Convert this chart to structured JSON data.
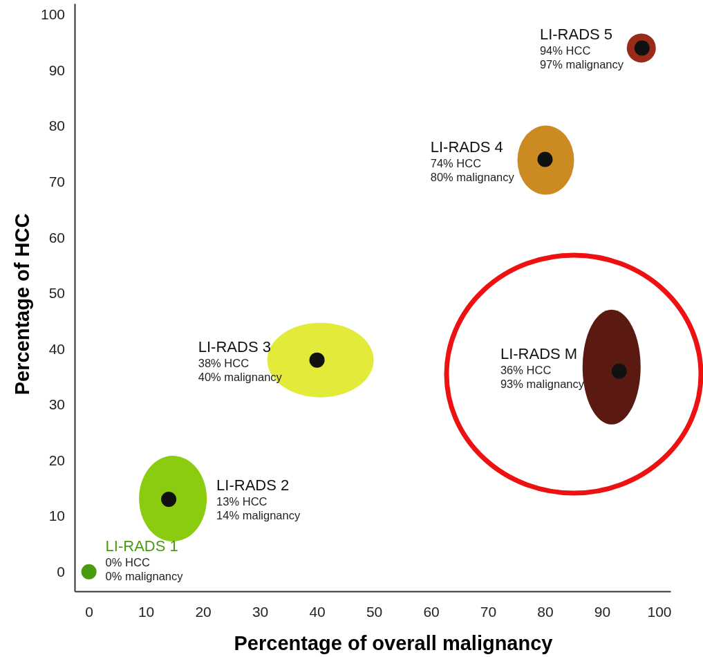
{
  "chart_data": {
    "type": "scatter",
    "xlabel": "Percentage of overall malignancy",
    "ylabel": "Percentage of HCC",
    "xlim": [
      -2.5,
      102
    ],
    "ylim": [
      -3.5,
      102
    ],
    "xticks": [
      0,
      10,
      20,
      30,
      40,
      50,
      60,
      70,
      80,
      90,
      100
    ],
    "yticks": [
      0,
      10,
      20,
      30,
      40,
      50,
      60,
      70,
      80,
      90,
      100
    ],
    "grid": false,
    "legend": false,
    "marker": "circle",
    "series": [
      {
        "name": "LI-RADS 1",
        "color": "#4a9a12",
        "x": [
          0
        ],
        "values": [
          0
        ]
      },
      {
        "name": "LI-RADS 2",
        "color": "#111111",
        "x": [
          14
        ],
        "values": [
          13
        ]
      },
      {
        "name": "LI-RADS 3",
        "color": "#111111",
        "x": [
          40
        ],
        "values": [
          38
        ]
      },
      {
        "name": "LI-RADS 4",
        "color": "#111111",
        "x": [
          80
        ],
        "values": [
          74
        ]
      },
      {
        "name": "LI-RADS 5",
        "color": "#111111",
        "x": [
          97
        ],
        "values": [
          94
        ]
      },
      {
        "name": "LI-RADS M",
        "color": "#111111",
        "x": [
          93
        ],
        "values": [
          36
        ]
      }
    ],
    "annotations": [
      "0% HCC",
      "0% malignancy",
      "13% HCC",
      "14% malignancy",
      "38% HCC",
      "40% malignancy",
      "74% HCC",
      "80% malignancy",
      "94% HCC",
      "97% malignancy",
      "36% HCC",
      "93% malignancy"
    ]
  }
}
